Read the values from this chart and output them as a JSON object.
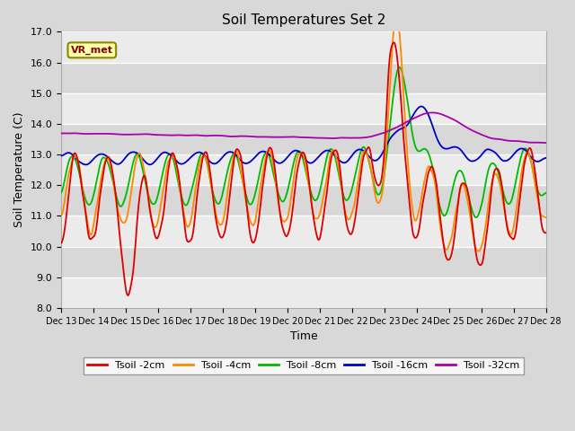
{
  "title": "Soil Temperatures Set 2",
  "xlabel": "Time",
  "ylabel": "Soil Temperature (C)",
  "ylim": [
    8.0,
    17.0
  ],
  "yticks": [
    8.0,
    9.0,
    10.0,
    11.0,
    12.0,
    13.0,
    14.0,
    15.0,
    16.0,
    17.0
  ],
  "xtick_labels": [
    "Dec 13",
    "Dec 14",
    "Dec 15",
    "Dec 16",
    "Dec 17",
    "Dec 18",
    "Dec 19",
    "Dec 20",
    "Dec 21",
    "Dec 22",
    "Dec 23",
    "Dec 24",
    "Dec 25",
    "Dec 26",
    "Dec 27",
    "Dec 28"
  ],
  "annotation_text": "VR_met",
  "legend_labels": [
    "Tsoil -2cm",
    "Tsoil -4cm",
    "Tsoil -8cm",
    "Tsoil -16cm",
    "Tsoil -32cm"
  ],
  "line_colors": [
    "#dd0000",
    "#ff8800",
    "#00bb00",
    "#0000cc",
    "#aa00aa"
  ],
  "background_color": "#d8d8d8",
  "plot_bg_light": "#ebebeb",
  "plot_bg_dark": "#d8d8d8",
  "title_fontsize": 11,
  "axis_fontsize": 9,
  "tick_fontsize": 8,
  "n_points": 720
}
